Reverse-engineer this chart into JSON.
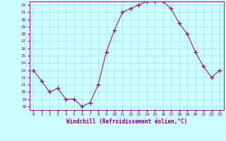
{
  "x": [
    0,
    1,
    2,
    3,
    4,
    5,
    6,
    7,
    8,
    9,
    10,
    11,
    12,
    13,
    14,
    15,
    16,
    17,
    18,
    19,
    20,
    21,
    22,
    23
  ],
  "y": [
    23.0,
    21.5,
    20.0,
    20.5,
    19.0,
    19.0,
    18.0,
    18.5,
    21.0,
    25.5,
    28.5,
    31.0,
    31.5,
    32.0,
    32.5,
    32.5,
    32.5,
    31.5,
    29.5,
    28.0,
    25.5,
    23.5,
    22.0,
    23.0
  ],
  "line_color": "#882288",
  "marker": "+",
  "marker_size": 4,
  "bg_color": "#ccffff",
  "grid_color": "#aadddd",
  "xlabel": "Windchill (Refroidissement éolien,°C)",
  "xlabel_color": "#800080",
  "tick_color": "#800080",
  "ylim": [
    17.5,
    32.5
  ],
  "yticks": [
    18,
    19,
    20,
    21,
    22,
    23,
    24,
    25,
    26,
    27,
    28,
    29,
    30,
    31,
    32
  ],
  "xticks": [
    0,
    1,
    2,
    3,
    4,
    5,
    6,
    7,
    8,
    9,
    10,
    11,
    12,
    13,
    14,
    15,
    16,
    17,
    18,
    19,
    20,
    21,
    22,
    23
  ],
  "spine_color": "#800080"
}
